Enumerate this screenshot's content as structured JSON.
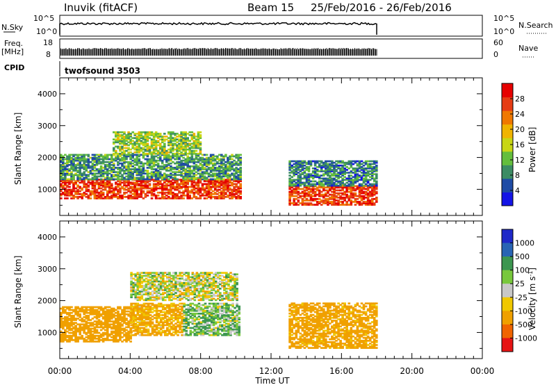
{
  "header": {
    "station": "Inuvik (fitACF)",
    "beam": "Beam 15",
    "date_range": "25/Feb/2016 - 26/Feb/2016"
  },
  "nsky_panel": {
    "left_label": "N.Sky",
    "right_label": "N.Search",
    "left_ticks": [
      "10^5",
      "10^0"
    ],
    "right_ticks": [
      "10^5",
      "10^0"
    ]
  },
  "freq_panel": {
    "left_label_1": "Freq.",
    "left_label_2": "[MHz]",
    "right_label": "Nave",
    "left_ticks": [
      "18",
      "8"
    ],
    "right_ticks": [
      "60",
      "0"
    ]
  },
  "cpid": {
    "label": "CPID",
    "mode": "twofsound 3503"
  },
  "chart_data": [
    {
      "type": "heatmap",
      "parameter": "Power",
      "ylabel": "Slant Range [km]",
      "xlabel": "Time UT",
      "x_range_hours": [
        0,
        24
      ],
      "ylim_km": [
        180,
        4500
      ],
      "y_ticks": [
        "1000",
        "2000",
        "3000",
        "4000"
      ],
      "colorbar_label": "Power [dB]",
      "colorbar_ticks": [
        "4",
        "8",
        "12",
        "16",
        "20",
        "24",
        "28"
      ],
      "colorbar_range": [
        0,
        32
      ],
      "colorbar_colors": [
        "#1414e6",
        "#1e4ba5",
        "#3c8c64",
        "#64be3c",
        "#c8d614",
        "#f0b400",
        "#f07800",
        "#e63c14",
        "#e60000"
      ],
      "data_end_hour": 18,
      "gap_hours": [
        10.2,
        13.0
      ],
      "regions": [
        {
          "t": [
            0,
            10.2
          ],
          "range_km": [
            700,
            1300
          ],
          "value_db": 27
        },
        {
          "t": [
            0,
            10.2
          ],
          "range_km": [
            1300,
            2100
          ],
          "value_db": 10
        },
        {
          "t": [
            3,
            8
          ],
          "range_km": [
            2100,
            2800
          ],
          "value_db": 14
        },
        {
          "t": [
            13.0,
            18
          ],
          "range_km": [
            500,
            1100
          ],
          "value_db": 27
        },
        {
          "t": [
            13.0,
            18
          ],
          "range_km": [
            1100,
            1900
          ],
          "value_db": 8
        }
      ]
    },
    {
      "type": "heatmap",
      "parameter": "Velocity",
      "ylabel": "Slant Range [km]",
      "xlabel": "Time UT",
      "x_range_hours": [
        0,
        24
      ],
      "ylim_km": [
        180,
        4500
      ],
      "y_ticks": [
        "1000",
        "2000",
        "3000",
        "4000"
      ],
      "x_ticks": [
        "00:00",
        "04:00",
        "08:00",
        "12:00",
        "16:00",
        "20:00",
        "00:00"
      ],
      "colorbar_label": "Velocity [m s-1]",
      "colorbar_unit_label": "Velocity [m s",
      "colorbar_unit_exp": "-1",
      "colorbar_unit_close": "]",
      "colorbar_ticks": [
        "1000",
        "500",
        "100",
        "25",
        "-25",
        "-100",
        "-500",
        "-1000"
      ],
      "colorbar_colors": [
        "#1e28c8",
        "#2864b4",
        "#3c9650",
        "#78c83c",
        "#c8c8c8",
        "#f0c800",
        "#f0a000",
        "#f06400",
        "#e61414"
      ],
      "data_end_hour": 18,
      "gap_hours": [
        10.2,
        13.0
      ],
      "regions": [
        {
          "t": [
            0,
            4
          ],
          "range_km": [
            700,
            1800
          ],
          "value_ms": -300
        },
        {
          "t": [
            4,
            7
          ],
          "range_km": [
            900,
            1900
          ],
          "value_ms": -150
        },
        {
          "t": [
            7,
            10.2
          ],
          "range_km": [
            900,
            1900
          ],
          "value_ms": 80
        },
        {
          "t": [
            4,
            10
          ],
          "range_km": [
            2000,
            2900
          ],
          "value_ms": 0
        },
        {
          "t": [
            13.0,
            18
          ],
          "range_km": [
            500,
            1900
          ],
          "value_ms": -200
        }
      ]
    }
  ]
}
